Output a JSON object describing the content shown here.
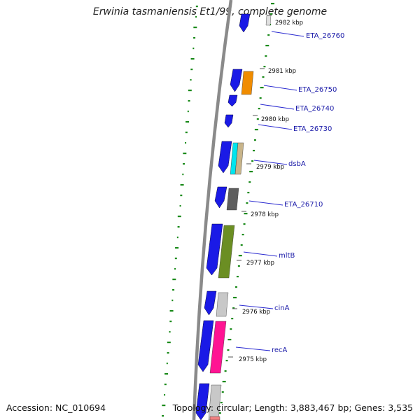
{
  "title": "Erwinia tasmaniensis Et1/99, complete genome",
  "accession": "Accession: NC_010694",
  "summary": "Topology: circular; Length: 3,883,467 bp; Genes: 3,535",
  "kbp_labels": [
    "2982 kbp",
    "2981 kbp",
    "2980 kbp",
    "2979 kbp",
    "2978 kbp",
    "2977 kbp",
    "2976 kbp",
    "2975 kbp"
  ],
  "gene_labels": [
    "ETA_26760",
    "ETA_26750",
    "ETA_26740",
    "ETA_26730",
    "dsbA",
    "ETA_26710",
    "mltB",
    "cinA",
    "recA"
  ],
  "colors": {
    "backbone": "#8a8a8a",
    "gc_dots": "#1a8a1a",
    "label_text": "#1a1aa8",
    "leader_line": "#2a2ad0",
    "cds_blue": "#1a1ae6",
    "orange": "#f08c00",
    "cyan": "#00e5ee",
    "tan": "#c8b48a",
    "dark_grey": "#5e5e5e",
    "olive": "#6b8e23",
    "light_grey": "#c8c8c8",
    "pink": "#ff1493",
    "salmon": "#f08080"
  }
}
